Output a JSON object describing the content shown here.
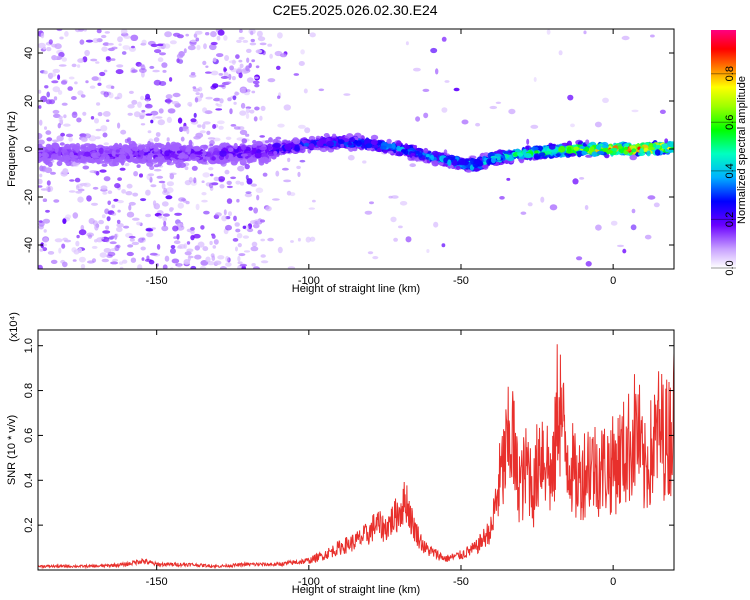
{
  "figure": {
    "title": "C2E5.2025.026.02.30.E24"
  },
  "chart_data": [
    {
      "type": "heatmap",
      "xlabel": "Height of straight line (km)",
      "ylabel": "Frequency (Hz)",
      "xlim": [
        -189,
        20
      ],
      "ylim": [
        -50,
        50
      ],
      "xticks": [
        -150,
        -100,
        -50,
        0
      ],
      "yticks": [
        -40,
        -20,
        0,
        20,
        40
      ],
      "colorbar": {
        "label": "Normalized spectral amplitude",
        "range": [
          0,
          0.98
        ],
        "ticks": [
          0.0,
          0.2,
          0.4,
          0.6,
          0.8
        ],
        "colormap": "rainbow (white-violet-blue-cyan-green-yellow-orange-red-magenta)"
      },
      "ridge_frequency_track": {
        "x": [
          -189,
          -170,
          -150,
          -130,
          -115,
          -100,
          -90,
          -80,
          -70,
          -60,
          -50,
          -45,
          -40,
          -30,
          -20,
          -10,
          0,
          10,
          20
        ],
        "y": [
          -2,
          -2,
          -2,
          -2,
          -1,
          2,
          3,
          2,
          0,
          -3,
          -6,
          -7,
          -4,
          -2,
          -1,
          0,
          0,
          0,
          1
        ]
      },
      "amplitude_trend": {
        "x": [
          -189,
          -115,
          -100,
          -80,
          -60,
          -40,
          -20,
          -10,
          0,
          20
        ],
        "y": [
          0.15,
          0.2,
          0.3,
          0.35,
          0.38,
          0.45,
          0.55,
          0.7,
          0.9,
          0.7
        ]
      },
      "grid": false
    },
    {
      "type": "line",
      "xlabel": "Height of straight line (km)",
      "ylabel": "SNR (10 * v/v)",
      "multiplier_label": "(x10⁴)",
      "xlim": [
        -189,
        20
      ],
      "ylim": [
        0,
        1.07
      ],
      "xticks": [
        -150,
        -100,
        -50,
        0
      ],
      "yticks": [
        0.2,
        0.4,
        0.6,
        0.8,
        1.0
      ],
      "color": "#e8302c",
      "series": [
        {
          "x": [
            -189,
            -180,
            -170,
            -160,
            -155,
            -150,
            -140,
            -130,
            -120,
            -110,
            -100,
            -95,
            -90,
            -85,
            -80,
            -78,
            -75,
            -72,
            -70,
            -68,
            -66,
            -64,
            -62,
            -60,
            -55,
            -50,
            -45,
            -40,
            -38,
            -36,
            -34,
            -33,
            -32,
            -30,
            -28,
            -26,
            -24,
            -22,
            -20,
            -19,
            -18,
            -16,
            -14,
            -12,
            -10,
            -8,
            -5,
            0,
            5,
            8,
            10,
            15,
            18,
            20
          ],
          "y": [
            0.02,
            0.02,
            0.02,
            0.03,
            0.05,
            0.03,
            0.03,
            0.02,
            0.03,
            0.03,
            0.05,
            0.08,
            0.12,
            0.15,
            0.2,
            0.25,
            0.22,
            0.28,
            0.32,
            0.38,
            0.25,
            0.18,
            0.12,
            0.1,
            0.06,
            0.08,
            0.12,
            0.22,
            0.45,
            0.6,
            0.75,
            0.78,
            0.55,
            0.5,
            0.6,
            0.45,
            0.72,
            0.65,
            0.5,
            0.7,
            1.05,
            0.72,
            0.62,
            0.5,
            0.55,
            0.62,
            0.58,
            0.6,
            0.7,
            0.82,
            0.55,
            0.8,
            0.75,
            0.88
          ]
        }
      ],
      "grid": false
    }
  ]
}
